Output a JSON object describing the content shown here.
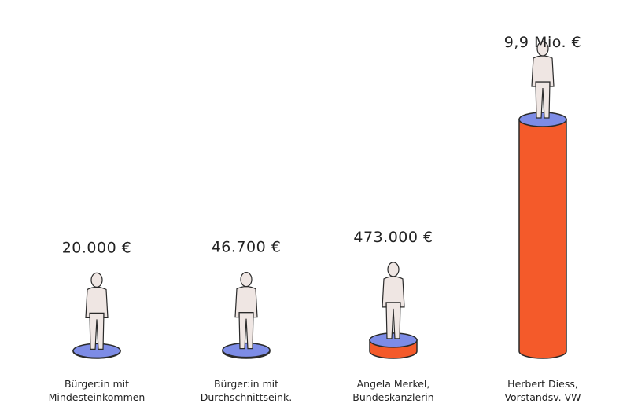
{
  "chart_data": {
    "type": "bar",
    "categories": [
      "Bürger:in mit Mindesteinkommen",
      "Bürger:in mit Durchschnittseink.",
      "Angela Merkel, Bundeskanzlerin",
      "Herbert Diess, Vorstandsv. VW"
    ],
    "values": [
      20000,
      46700,
      473000,
      9900000
    ],
    "value_labels": [
      "20.000 €",
      "46.700 €",
      "473.000 €",
      "9,9 Mio. €"
    ],
    "color": "#f45a2a",
    "top_color": "#7d8ce6"
  }
}
